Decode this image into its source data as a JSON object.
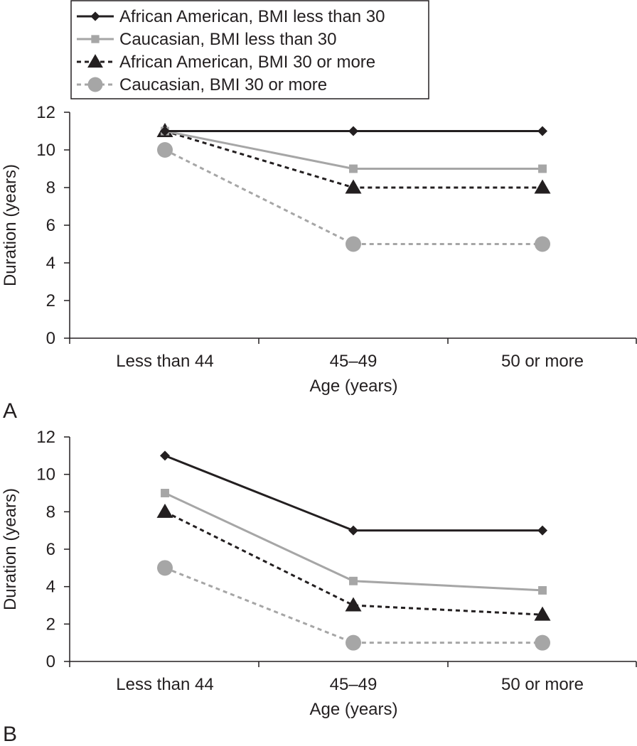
{
  "legend": {
    "entries": [
      {
        "label": "African American, BMI less than 30",
        "color": "#231f20",
        "dashed": false,
        "marker": "diamond"
      },
      {
        "label": "Caucasian, BMI less than 30",
        "color": "#a6a6a6",
        "dashed": false,
        "marker": "square"
      },
      {
        "label": "African American, BMI 30 or more",
        "color": "#231f20",
        "dashed": true,
        "marker": "triangle"
      },
      {
        "label": "Caucasian, BMI 30 or more",
        "color": "#a6a6a6",
        "dashed": true,
        "marker": "circle"
      }
    ]
  },
  "chart_data": [
    {
      "panel": "A",
      "type": "line",
      "xlabel": "Age (years)",
      "ylabel": "Duration (years)",
      "ylim": [
        0,
        12
      ],
      "yticks": [
        0,
        2,
        4,
        6,
        8,
        10,
        12
      ],
      "categories": [
        "Less than 44",
        "45–49",
        "50 or more"
      ],
      "series": [
        {
          "name": "African American, BMI less than 30",
          "values": [
            11,
            11,
            11
          ]
        },
        {
          "name": "Caucasian, BMI less than 30",
          "values": [
            11,
            9,
            9
          ]
        },
        {
          "name": "African American, BMI 30 or more",
          "values": [
            11,
            8,
            8
          ]
        },
        {
          "name": "Caucasian, BMI 30 or more",
          "values": [
            10,
            5,
            5
          ]
        }
      ]
    },
    {
      "panel": "B",
      "type": "line",
      "xlabel": "Age (years)",
      "ylabel": "Duration (years)",
      "ylim": [
        0,
        12
      ],
      "yticks": [
        0,
        2,
        4,
        6,
        8,
        10,
        12
      ],
      "categories": [
        "Less than 44",
        "45–49",
        "50 or more"
      ],
      "series": [
        {
          "name": "African American, BMI less than 30",
          "values": [
            11,
            7,
            7
          ]
        },
        {
          "name": "Caucasian, BMI less than 30",
          "values": [
            9,
            4.3,
            3.8
          ]
        },
        {
          "name": "African American, BMI 30 or more",
          "values": [
            8,
            3,
            2.5
          ]
        },
        {
          "name": "Caucasian, BMI 30 or more",
          "values": [
            5,
            1,
            1
          ]
        }
      ]
    }
  ]
}
